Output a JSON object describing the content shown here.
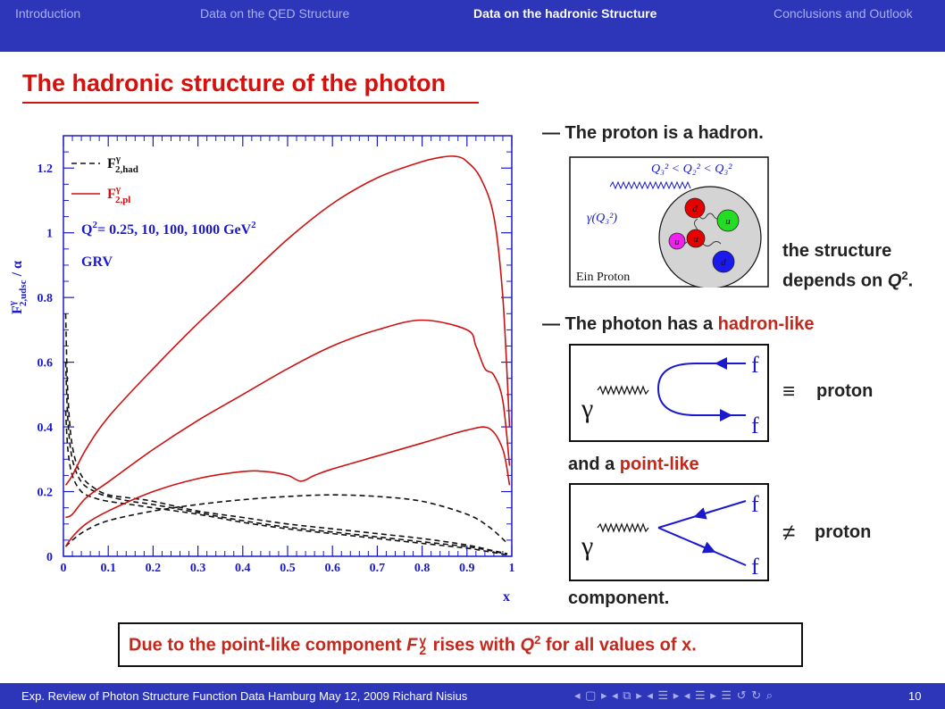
{
  "nav": {
    "items": [
      "Introduction",
      "Data on the QED Structure",
      "Data on the hadronic Structure",
      "Conclusions and Outlook"
    ],
    "active_index": 2
  },
  "slide_title": "The hadronic structure of the photon",
  "bullets": {
    "b1": "— The proton is a hadron.",
    "structure1": "the structure",
    "structure2_prefix": "depends on ",
    "structure2_var": "Q",
    "structure2_sup": "2",
    "structure2_suffix": ".",
    "b2_prefix": "— The photon has a ",
    "b2_highlight": "hadron-like",
    "proton_label": "proton",
    "and_prefix": "and a ",
    "and_highlight": "point-like",
    "component": "component."
  },
  "proton_fig": {
    "formula": "Q₃² < Q₂² < Q₃²",
    "gamma_label": "γ(Q₃²)",
    "caption": "Ein Proton",
    "quarks": [
      {
        "label": "d",
        "color": "#e60000"
      },
      {
        "label": "u",
        "color": "#22dd22"
      },
      {
        "label": "u",
        "color": "#ee22ee"
      },
      {
        "label": "u",
        "color": "#e60000"
      },
      {
        "label": "d",
        "color": "#1a1aee"
      }
    ]
  },
  "diagram1": {
    "gamma": "γ",
    "f_top": "f",
    "f_bottom": "f",
    "relation": "≡"
  },
  "diagram2": {
    "gamma": "γ",
    "f_top": "f",
    "f_bottom": "f",
    "relation": "≠"
  },
  "conclusion": {
    "prefix": "Due to the point-like component ",
    "var": "F",
    "sub": "2",
    "sup": "γ",
    "middle": " rises with ",
    "q": "Q",
    "qsup": "2",
    "suffix": " for all values of x."
  },
  "chart_data": {
    "type": "line",
    "title": "",
    "xlabel": "x",
    "ylabel": "F",
    "ylabel_sup": "γ",
    "ylabel_sub": "2,udsc",
    "ylabel_suffix": " / α",
    "xlim": [
      0,
      1
    ],
    "ylim": [
      0,
      1.3
    ],
    "xticks": [
      "0",
      "0.1",
      "0.2",
      "0.3",
      "0.4",
      "0.5",
      "0.6",
      "0.7",
      "0.8",
      "0.9",
      "1"
    ],
    "yticks": [
      "0",
      "0.2",
      "0.4",
      "0.6",
      "0.8",
      "1",
      "1.2"
    ],
    "legend": [
      {
        "label": "F",
        "sup": "γ",
        "sub": "2,had",
        "style": "dashed",
        "color": "#111111"
      },
      {
        "label": "F",
        "sup": "γ",
        "sub": "2,pl",
        "style": "solid",
        "color": "#cc1111"
      }
    ],
    "annotations": {
      "q2_prefix": "Q",
      "q2_sup": "2",
      "q2_text": "= 0.25, 10, 100, 1000 GeV",
      "q2_text_sup": "2",
      "grv": "GRV"
    },
    "colors": {
      "axis": "#1a1acc",
      "had": "#111111",
      "pl": "#cc1111"
    },
    "series": [
      {
        "group": "had",
        "x": [
          0.005,
          0.01,
          0.02,
          0.04,
          0.07,
          0.1,
          0.15,
          0.2,
          0.3,
          0.4,
          0.5,
          0.6,
          0.7,
          0.8,
          0.9,
          0.95,
          0.99
        ],
        "y": [
          0.75,
          0.5,
          0.34,
          0.25,
          0.21,
          0.19,
          0.18,
          0.17,
          0.14,
          0.12,
          0.1,
          0.085,
          0.07,
          0.055,
          0.035,
          0.02,
          0.008
        ]
      },
      {
        "group": "had",
        "x": [
          0.005,
          0.01,
          0.02,
          0.04,
          0.07,
          0.1,
          0.15,
          0.2,
          0.3,
          0.4,
          0.5,
          0.6,
          0.7,
          0.8,
          0.9,
          0.95,
          0.99
        ],
        "y": [
          0.6,
          0.42,
          0.3,
          0.23,
          0.2,
          0.185,
          0.17,
          0.16,
          0.135,
          0.11,
          0.09,
          0.075,
          0.06,
          0.045,
          0.03,
          0.018,
          0.006
        ]
      },
      {
        "group": "had",
        "x": [
          0.005,
          0.01,
          0.02,
          0.04,
          0.07,
          0.1,
          0.15,
          0.2,
          0.3,
          0.4,
          0.5,
          0.6,
          0.7,
          0.8,
          0.9,
          0.95,
          0.99
        ],
        "y": [
          0.45,
          0.33,
          0.25,
          0.2,
          0.18,
          0.17,
          0.16,
          0.15,
          0.13,
          0.105,
          0.085,
          0.07,
          0.055,
          0.04,
          0.025,
          0.014,
          0.004
        ]
      },
      {
        "group": "had",
        "x": [
          0.005,
          0.02,
          0.05,
          0.1,
          0.2,
          0.3,
          0.4,
          0.5,
          0.6,
          0.7,
          0.8,
          0.9,
          0.95,
          0.99
        ],
        "y": [
          0.03,
          0.05,
          0.08,
          0.11,
          0.14,
          0.16,
          0.175,
          0.185,
          0.19,
          0.185,
          0.17,
          0.13,
          0.09,
          0.04
        ]
      },
      {
        "group": "pl",
        "x": [
          0.005,
          0.02,
          0.05,
          0.1,
          0.2,
          0.3,
          0.4,
          0.5,
          0.6,
          0.7,
          0.8,
          0.85,
          0.88,
          0.9,
          0.93,
          0.96,
          0.98,
          0.995
        ],
        "y": [
          0.22,
          0.25,
          0.33,
          0.43,
          0.58,
          0.72,
          0.85,
          0.98,
          1.09,
          1.17,
          1.22,
          1.235,
          1.235,
          1.22,
          1.17,
          1.05,
          0.8,
          0.4
        ]
      },
      {
        "group": "pl",
        "x": [
          0.005,
          0.02,
          0.05,
          0.1,
          0.2,
          0.3,
          0.4,
          0.5,
          0.6,
          0.7,
          0.8,
          0.9,
          0.92,
          0.94,
          0.96,
          0.98,
          0.995
        ],
        "y": [
          0.12,
          0.13,
          0.18,
          0.23,
          0.33,
          0.42,
          0.5,
          0.58,
          0.65,
          0.7,
          0.73,
          0.7,
          0.65,
          0.58,
          0.56,
          0.48,
          0.28
        ]
      },
      {
        "group": "pl",
        "x": [
          0.005,
          0.02,
          0.05,
          0.1,
          0.2,
          0.3,
          0.4,
          0.45,
          0.5,
          0.53,
          0.56,
          0.6,
          0.7,
          0.8,
          0.9,
          0.95,
          0.98,
          0.995
        ],
        "y": [
          0.03,
          0.06,
          0.1,
          0.14,
          0.2,
          0.24,
          0.262,
          0.262,
          0.25,
          0.232,
          0.25,
          0.27,
          0.31,
          0.35,
          0.39,
          0.395,
          0.33,
          0.22
        ]
      }
    ]
  },
  "footer": {
    "text": "Exp. Review of Photon Structure Function Data  Hamburg  May 12, 2009  Richard Nisius",
    "nav_symbols": "◂ ▢ ▸ ◂ ⧉ ▸ ◂ ☰ ▸ ◂ ☰ ▸   ☰   ↺ ↻ ⌕",
    "page": "10"
  }
}
